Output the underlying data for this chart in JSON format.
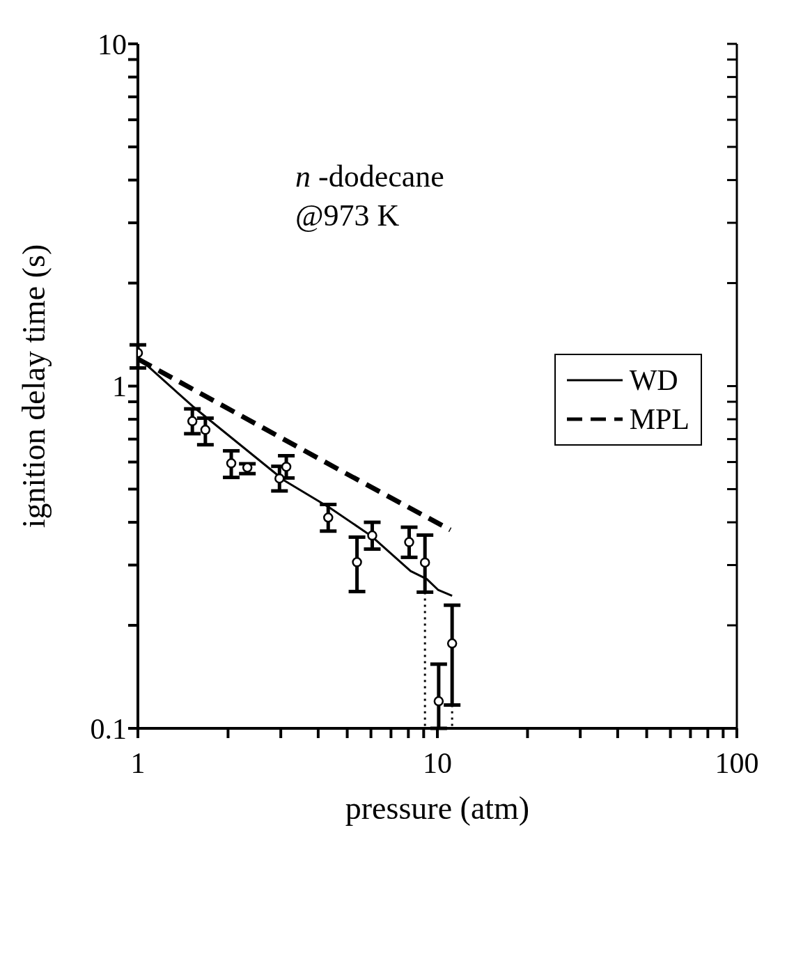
{
  "chart_data": {
    "type": "line",
    "xlabel": "pressure (atm)",
    "ylabel": "ignition delay time (s)",
    "annotations": [
      "n -dodecane",
      "@973 K"
    ],
    "log": "xy",
    "legend": "right",
    "xlim": [
      1,
      100
    ],
    "ylim": [
      0.1,
      10
    ],
    "xticks": [
      1,
      {
        "value": 2,
        "label": null
      },
      {
        "value": 3,
        "label": null
      },
      {
        "value": 4,
        "label": null
      },
      {
        "value": 5,
        "label": null
      },
      {
        "value": 6,
        "label": null
      },
      {
        "value": 7,
        "label": null
      },
      {
        "value": 8,
        "label": null
      },
      {
        "value": 9,
        "label": null
      },
      10,
      {
        "value": 20,
        "label": null
      },
      {
        "value": 30,
        "label": null
      },
      {
        "value": 40,
        "label": null
      },
      {
        "value": 50,
        "label": null
      },
      {
        "value": 60,
        "label": null
      },
      {
        "value": 70,
        "label": null
      },
      {
        "value": 80,
        "label": null
      },
      {
        "value": 90,
        "label": null
      },
      100
    ],
    "yticks": [
      0.1,
      {
        "value": 0.2,
        "label": null
      },
      {
        "value": 0.3,
        "label": null
      },
      {
        "value": 0.4,
        "label": null
      },
      {
        "value": 0.5,
        "label": null
      },
      {
        "value": 0.6,
        "label": null
      },
      {
        "value": 0.7,
        "label": null
      },
      {
        "value": 0.8,
        "label": null
      },
      {
        "value": 0.9,
        "label": null
      },
      1,
      {
        "value": 2,
        "label": null
      },
      {
        "value": 3,
        "label": null
      },
      {
        "value": 4,
        "label": null
      },
      {
        "value": 5,
        "label": null
      },
      {
        "value": 6,
        "label": null
      },
      {
        "value": 7,
        "label": null
      },
      {
        "value": 8,
        "label": null
      },
      {
        "value": 9,
        "label": null
      },
      10
    ],
    "series": [
      {
        "type": "scatter",
        "color": "#000000",
        "marker": "circle",
        "x": [
          1,
          1.52,
          1.68,
          2.05,
          2.32,
          2.97,
          3.13,
          4.32,
          5.39,
          6.06,
          8.05,
          9.09,
          10.1,
          11.2
        ],
        "values": [
          1.25,
          0.79,
          0.745,
          0.595,
          0.578,
          0.537,
          0.581,
          0.413,
          0.306,
          0.366,
          0.35,
          0.305,
          0.12,
          0.177
        ],
        "errors": [
          [
            1.13,
            1.32
          ],
          [
            0.726,
            0.858
          ],
          [
            0.674,
            0.806
          ],
          [
            0.541,
            0.647
          ],
          [
            0.555,
            0.593
          ],
          [
            0.494,
            0.583
          ],
          [
            0.539,
            0.626
          ],
          [
            0.377,
            0.451
          ],
          [
            0.251,
            0.362
          ],
          [
            0.334,
            0.4
          ],
          [
            0.316,
            0.387
          ],
          [
            0.25,
            0.367
          ],
          [
            0.1,
            0.154
          ],
          [
            0.117,
            0.229
          ]
        ]
      },
      {
        "name": "WD",
        "color": "#000000",
        "line_style": "solid",
        "x": [
          1,
          1.526,
          3.08,
          4.39,
          6.01,
          8.14,
          9.22,
          10.05,
          11.2
        ],
        "values": [
          1.215,
          0.872,
          0.53,
          0.44,
          0.365,
          0.288,
          0.273,
          0.254,
          0.244
        ]
      },
      {
        "name": "MPL",
        "color": "#000000",
        "line_style": "dashed",
        "x": [
          1,
          4.87,
          11.05
        ],
        "values": [
          1.2,
          0.56,
          0.38
        ]
      },
      {
        "color": "#000000",
        "line_style": "dotted",
        "x": [
          9.09,
          9.09
        ],
        "values": [
          0.25,
          0.1
        ]
      },
      {
        "color": "#000000",
        "line_style": "dotted",
        "x": [
          11.2,
          11.2
        ],
        "values": [
          0.117,
          0.1
        ]
      }
    ]
  }
}
